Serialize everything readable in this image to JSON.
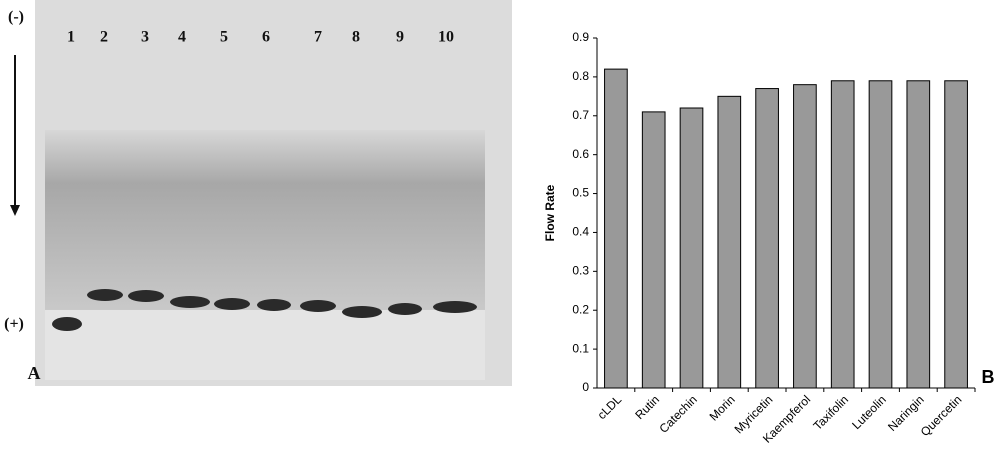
{
  "gel": {
    "top_label": "(-)",
    "bottom_label": "(+)",
    "panel_label": "A",
    "lane_labels": [
      "1",
      "2",
      "3",
      "4",
      "5",
      "6",
      "7",
      "8",
      "9",
      "10"
    ]
  },
  "chart_data": {
    "type": "bar",
    "panel_label": "B",
    "y_label": "Flow Rate",
    "categories": [
      "cLDL",
      "Rutin",
      "Catechin",
      "Morin",
      "Myricetin",
      "Kaempferol",
      "Taxifolin",
      "Luteolin",
      "Naringin",
      "Quercetin"
    ],
    "values": [
      0.82,
      0.71,
      0.72,
      0.75,
      0.77,
      0.78,
      0.79,
      0.79,
      0.79,
      0.79
    ],
    "color": "#999999",
    "ylim": [
      0,
      0.9
    ],
    "yticks": [
      0,
      0.1,
      0.2,
      0.3,
      0.4,
      0.5,
      0.6,
      0.7,
      0.8,
      0.9
    ]
  }
}
